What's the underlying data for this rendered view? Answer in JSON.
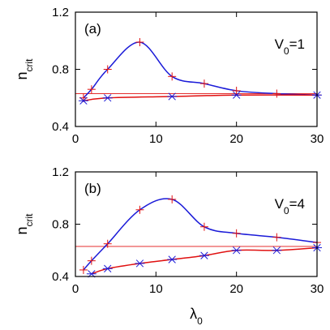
{
  "chart_data": [
    {
      "type": "line",
      "panel_label": "(a)",
      "annotation": "V",
      "annotation_sub": "0",
      "annotation_suffix": "=1",
      "ylabel": "n",
      "ylabel_sub": "crit",
      "xlabel": "",
      "xlim": [
        0,
        30
      ],
      "ylim": [
        0.4,
        1.2
      ],
      "xticks": [
        "0",
        "10",
        "20",
        "30"
      ],
      "yticks": [
        "0.4",
        "0.8",
        "1.2"
      ],
      "xtick_values": [
        0,
        10,
        20,
        30
      ],
      "ytick_values": [
        0.4,
        0.8,
        1.2
      ],
      "reference_line": 0.63,
      "series": [
        {
          "color": "#1a1ad8",
          "marker": "plus",
          "x": [
            1,
            2,
            4,
            8,
            12,
            16,
            20,
            25,
            30
          ],
          "y": [
            0.6,
            0.66,
            0.8,
            0.99,
            0.75,
            0.7,
            0.65,
            0.63,
            0.62
          ]
        },
        {
          "color": "#e01010",
          "marker": "star",
          "x": [
            1,
            4,
            12,
            20,
            30
          ],
          "y": [
            0.58,
            0.6,
            0.61,
            0.62,
            0.62
          ]
        }
      ]
    },
    {
      "type": "line",
      "panel_label": "(b)",
      "annotation": "V",
      "annotation_sub": "0",
      "annotation_suffix": "=4",
      "ylabel": "n",
      "ylabel_sub": "crit",
      "xlabel": "λ",
      "xlabel_sub": "0",
      "xlim": [
        0,
        30
      ],
      "ylim": [
        0.4,
        1.2
      ],
      "xticks": [
        "0",
        "10",
        "20",
        "30"
      ],
      "yticks": [
        "0.4",
        "0.8",
        "1.2"
      ],
      "xtick_values": [
        0,
        10,
        20,
        30
      ],
      "ytick_values": [
        0.4,
        0.8,
        1.2
      ],
      "reference_line": 0.63,
      "series": [
        {
          "color": "#1a1ad8",
          "marker": "plus",
          "x": [
            1,
            2,
            4,
            8,
            12,
            16,
            20,
            25,
            30
          ],
          "y": [
            0.45,
            0.52,
            0.65,
            0.91,
            0.99,
            0.78,
            0.73,
            0.7,
            0.66
          ]
        },
        {
          "color": "#e01010",
          "marker": "star",
          "x": [
            2,
            4,
            8,
            12,
            16,
            20,
            25,
            30
          ],
          "y": [
            0.42,
            0.46,
            0.5,
            0.53,
            0.56,
            0.6,
            0.6,
            0.62
          ]
        }
      ]
    }
  ]
}
